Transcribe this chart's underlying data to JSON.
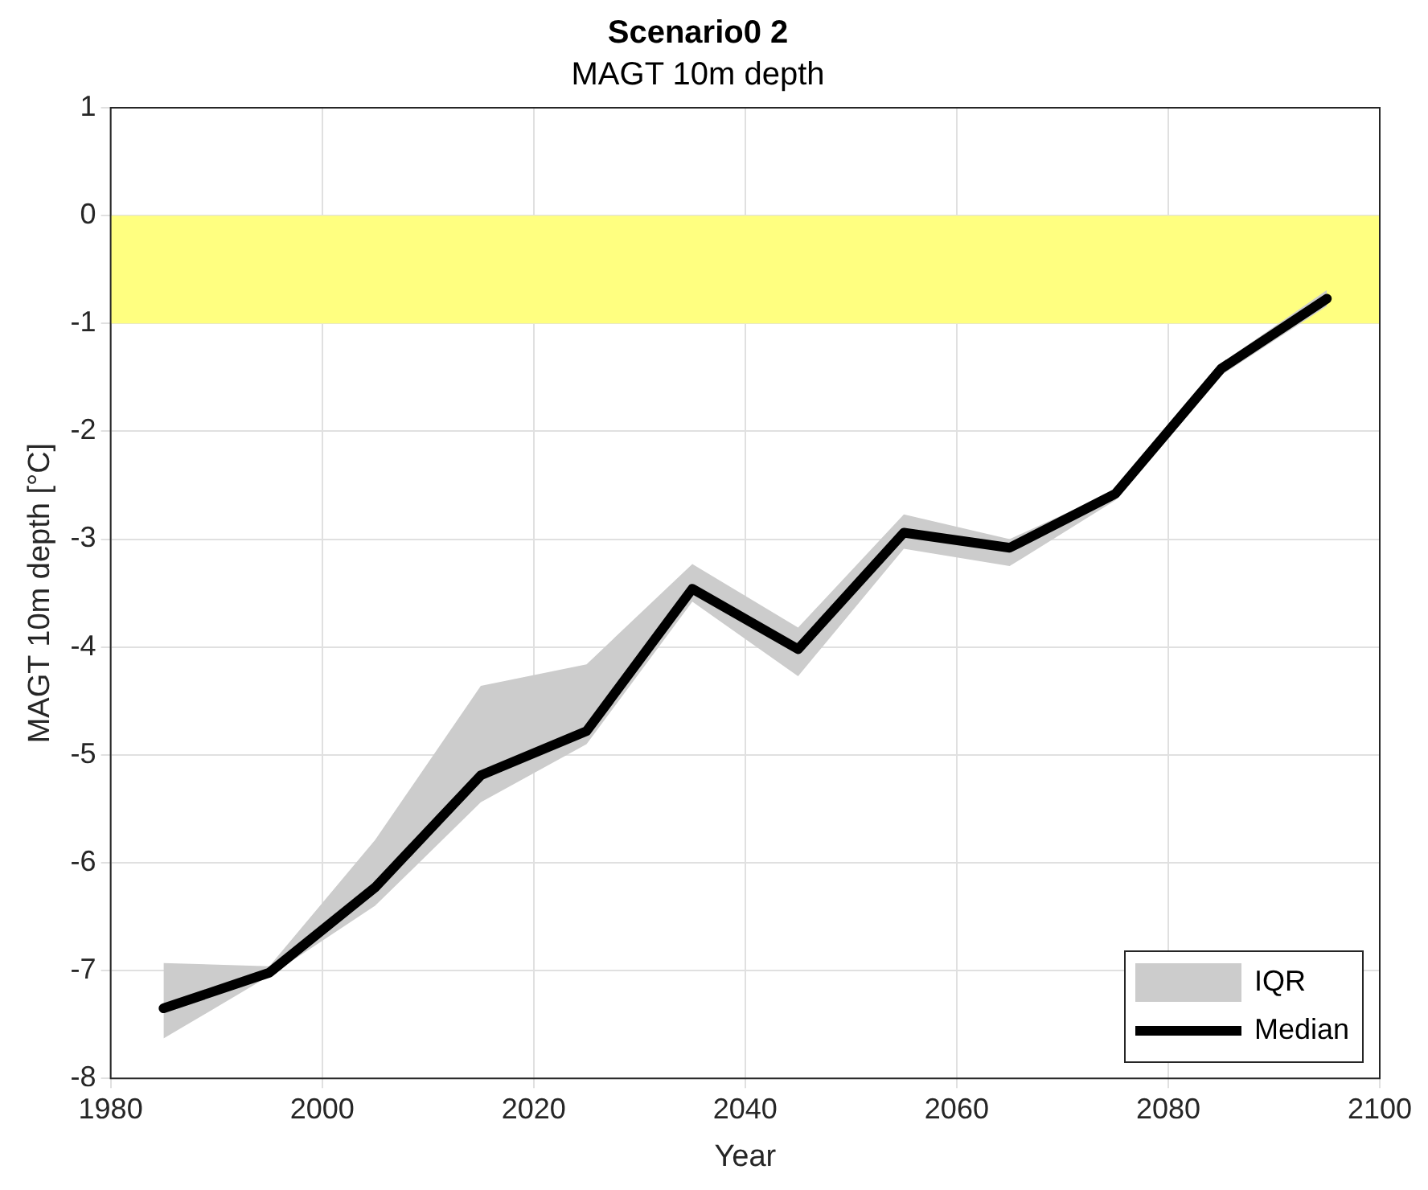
{
  "chart_data": {
    "type": "line",
    "title": "Scenario0 2",
    "subtitle": "MAGT 10m depth",
    "xlabel": "Year",
    "ylabel": "MAGT 10m depth [°C]",
    "x": [
      1985,
      1995,
      2005,
      2015,
      2025,
      2035,
      2045,
      2055,
      2065,
      2075,
      2085,
      2095
    ],
    "series": [
      {
        "name": "Median",
        "color": "#000000",
        "values": [
          -7.35,
          -7.02,
          -6.23,
          -5.19,
          -4.78,
          -3.46,
          -4.02,
          -2.94,
          -3.08,
          -2.58,
          -1.42,
          -0.77
        ],
        "lower": [
          -7.63,
          -7.05,
          -6.4,
          -5.44,
          -4.9,
          -3.58,
          -4.27,
          -3.09,
          -3.25,
          -2.64,
          -1.48,
          -0.84
        ],
        "upper": [
          -6.93,
          -6.96,
          -5.79,
          -4.36,
          -4.16,
          -3.23,
          -3.82,
          -2.77,
          -3.0,
          -2.55,
          -1.37,
          -0.69
        ]
      }
    ],
    "annotations": [
      "IQR"
    ],
    "bands": [
      {
        "axis": "y",
        "from": -1,
        "to": 0,
        "color": "#ffff80"
      }
    ],
    "xlim": [
      1980,
      2100
    ],
    "xticks": [
      1980,
      2000,
      2020,
      2040,
      2060,
      2080,
      2100
    ],
    "ylim": [
      -8,
      1
    ],
    "yticks": [
      -8,
      -7,
      -6,
      -5,
      -4,
      -3,
      -2,
      -1,
      0,
      1
    ],
    "grid": true,
    "legend": "bottom right",
    "marker": "none",
    "line_style": "solid"
  }
}
